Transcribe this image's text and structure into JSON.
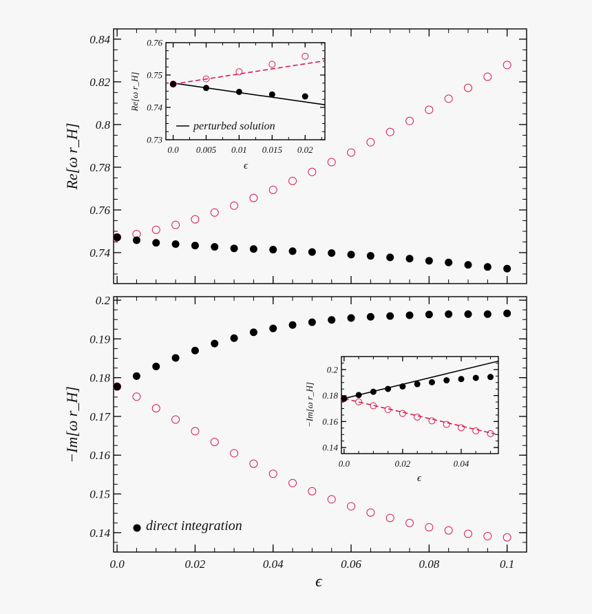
{
  "colors": {
    "background": "#f7f7f7",
    "direct": "#000000",
    "perturbed_accent": "#d81b4e"
  },
  "chart_data": [
    {
      "type": "scatter",
      "panel": "top",
      "ylabel": "Re[ω r_H]",
      "xlabel": "",
      "xlim": [
        -0.0009,
        0.105
      ],
      "ylim": [
        0.7255,
        0.8448
      ],
      "xticks": [
        {
          "value": 0
        },
        {
          "value": 0.02
        },
        {
          "value": 0.04
        },
        {
          "value": 0.06
        },
        {
          "value": 0.08
        },
        {
          "value": 0.1
        }
      ],
      "x_minor_step": 0.005,
      "yticks": [
        {
          "value": 0.74,
          "label": "0.74"
        },
        {
          "value": 0.76,
          "label": "0.76"
        },
        {
          "value": 0.78,
          "label": "0.78"
        },
        {
          "value": 0.8,
          "label": "0.8"
        },
        {
          "value": 0.82,
          "label": "0.82"
        },
        {
          "value": 0.84,
          "label": "0.84"
        }
      ],
      "y_minor_step": 0.005,
      "grid": false,
      "series": [
        {
          "marker": "filled",
          "color": "#000000",
          "x": [
            0,
            0.005,
            0.01,
            0.015,
            0.02,
            0.025,
            0.03,
            0.035,
            0.04,
            0.045,
            0.05,
            0.055,
            0.06,
            0.065,
            0.07,
            0.075,
            0.08,
            0.085,
            0.09,
            0.095,
            0.1
          ],
          "y": [
            0.7472,
            0.7458,
            0.7446,
            0.744,
            0.7433,
            0.7427,
            0.742,
            0.7417,
            0.7414,
            0.7407,
            0.7403,
            0.7398,
            0.7391,
            0.7385,
            0.7378,
            0.7372,
            0.7362,
            0.7354,
            0.7343,
            0.7333,
            0.7325
          ]
        },
        {
          "marker": "open",
          "color": "#d81b4e",
          "x": [
            0,
            0.005,
            0.01,
            0.015,
            0.02,
            0.025,
            0.03,
            0.035,
            0.04,
            0.045,
            0.05,
            0.055,
            0.06,
            0.065,
            0.07,
            0.075,
            0.08,
            0.085,
            0.09,
            0.095,
            0.1
          ],
          "y": [
            0.7472,
            0.7487,
            0.7507,
            0.753,
            0.7556,
            0.7588,
            0.762,
            0.7656,
            0.7694,
            0.7736,
            0.7778,
            0.7824,
            0.7869,
            0.7917,
            0.7965,
            0.8017,
            0.8069,
            0.8121,
            0.8172,
            0.8224,
            0.8279
          ]
        }
      ],
      "lines": []
    },
    {
      "type": "scatter",
      "panel": "bottom",
      "ylabel": "−Im[ω r_H]",
      "xlabel": "ϵ",
      "xlim": [
        -0.0009,
        0.105
      ],
      "ylim": [
        0.135,
        0.2009
      ],
      "xticks": [
        {
          "value": 0,
          "label": "0.0"
        },
        {
          "value": 0.02,
          "label": "0.02"
        },
        {
          "value": 0.04,
          "label": "0.04"
        },
        {
          "value": 0.06,
          "label": "0.06"
        },
        {
          "value": 0.08,
          "label": "0.08"
        },
        {
          "value": 0.1,
          "label": "0.1"
        }
      ],
      "x_minor_step": 0.005,
      "yticks": [
        {
          "value": 0.14,
          "label": "0.14"
        },
        {
          "value": 0.15,
          "label": "0.15"
        },
        {
          "value": 0.16,
          "label": "0.16"
        },
        {
          "value": 0.17,
          "label": "0.17"
        },
        {
          "value": 0.18,
          "label": "0.18"
        },
        {
          "value": 0.19,
          "label": "0.19"
        },
        {
          "value": 0.2,
          "label": "0.2"
        }
      ],
      "y_minor_step": 0.0025,
      "grid": false,
      "legend": {
        "label": "direct integration",
        "marker": "filled",
        "placement": "bottom-left"
      },
      "series": [
        {
          "marker": "filled",
          "color": "#000000",
          "x": [
            0,
            0.005,
            0.01,
            0.015,
            0.02,
            0.025,
            0.03,
            0.035,
            0.04,
            0.045,
            0.05,
            0.055,
            0.06,
            0.065,
            0.07,
            0.075,
            0.08,
            0.085,
            0.09,
            0.095,
            0.1
          ],
          "y": [
            0.1777,
            0.1804,
            0.1829,
            0.1851,
            0.187,
            0.1888,
            0.1902,
            0.1917,
            0.1927,
            0.1936,
            0.1943,
            0.1949,
            0.1954,
            0.1957,
            0.1959,
            0.1961,
            0.1963,
            0.1964,
            0.1964,
            0.1964,
            0.1966
          ]
        },
        {
          "marker": "open",
          "color": "#d81b4e",
          "x": [
            0,
            0.005,
            0.01,
            0.015,
            0.02,
            0.025,
            0.03,
            0.035,
            0.04,
            0.045,
            0.05,
            0.055,
            0.06,
            0.065,
            0.07,
            0.075,
            0.08,
            0.085,
            0.09,
            0.095,
            0.1
          ],
          "y": [
            0.1777,
            0.1751,
            0.1721,
            0.1692,
            0.1662,
            0.1634,
            0.1605,
            0.1578,
            0.1552,
            0.1528,
            0.1507,
            0.1486,
            0.1468,
            0.1452,
            0.1438,
            0.1425,
            0.1414,
            0.1406,
            0.1397,
            0.1391,
            0.1388
          ]
        }
      ],
      "lines": []
    },
    {
      "type": "scatter",
      "panel": "inset-top",
      "ylabel": "Re[ω r_H]",
      "xlabel": "ϵ",
      "xlim": [
        -0.0011,
        0.023
      ],
      "ylim": [
        0.73,
        0.76
      ],
      "xticks": [
        {
          "value": 0,
          "label": "0.0"
        },
        {
          "value": 0.005,
          "label": "0.005"
        },
        {
          "value": 0.01,
          "label": "0.01"
        },
        {
          "value": 0.015,
          "label": "0.015"
        },
        {
          "value": 0.02,
          "label": "0.02"
        }
      ],
      "x_minor_step": 0.0025,
      "yticks": [
        {
          "value": 0.73,
          "label": "0.73"
        },
        {
          "value": 0.74,
          "label": "0.74"
        },
        {
          "value": 0.75,
          "label": "0.75"
        },
        {
          "value": 0.76,
          "label": "0.76"
        }
      ],
      "y_minor_step": 0.0025,
      "grid": false,
      "legend": {
        "label": "perturbed solution",
        "marker": "line",
        "placement": "bottom-left"
      },
      "series": [
        {
          "marker": "filled",
          "color": "#000000",
          "x": [
            0,
            0.005,
            0.01,
            0.015,
            0.02
          ],
          "y": [
            0.7472,
            0.746,
            0.7448,
            0.744,
            0.7434
          ]
        },
        {
          "marker": "open",
          "color": "#d81b4e",
          "x": [
            0,
            0.005,
            0.01,
            0.015,
            0.02
          ],
          "y": [
            0.7472,
            0.7488,
            0.751,
            0.7533,
            0.7558
          ]
        }
      ],
      "lines": [
        {
          "style": "solid",
          "color": "#000000",
          "x": [
            0,
            0.023
          ],
          "y": [
            0.7475,
            0.7408
          ]
        },
        {
          "style": "dashed",
          "color": "#d81b4e",
          "x": [
            0,
            0.023
          ],
          "y": [
            0.7472,
            0.7544
          ]
        }
      ]
    },
    {
      "type": "scatter",
      "panel": "inset-bottom",
      "ylabel": "−Im[ω r_H]",
      "xlabel": "ϵ",
      "xlim": [
        -0.0009,
        0.0527
      ],
      "ylim": [
        0.1353,
        0.21
      ],
      "xticks": [
        {
          "value": 0,
          "label": "0.0"
        },
        {
          "value": 0.02,
          "label": "0.02"
        },
        {
          "value": 0.04,
          "label": "0.04"
        }
      ],
      "x_minor_step": 0.005,
      "yticks": [
        {
          "value": 0.14,
          "label": "0.14"
        },
        {
          "value": 0.16,
          "label": "0.16"
        },
        {
          "value": 0.18,
          "label": "0.18"
        },
        {
          "value": 0.2,
          "label": "0.2"
        }
      ],
      "y_minor_step": 0.005,
      "grid": false,
      "series": [
        {
          "marker": "filled",
          "color": "#000000",
          "x": [
            0,
            0.005,
            0.01,
            0.015,
            0.02,
            0.025,
            0.03,
            0.035,
            0.04,
            0.045,
            0.05
          ],
          "y": [
            0.1777,
            0.1804,
            0.1829,
            0.1851,
            0.187,
            0.1888,
            0.1902,
            0.1917,
            0.1927,
            0.1936,
            0.1943
          ]
        },
        {
          "marker": "open",
          "color": "#d81b4e",
          "x": [
            0,
            0.005,
            0.01,
            0.015,
            0.02,
            0.025,
            0.03,
            0.035,
            0.04,
            0.045,
            0.05
          ],
          "y": [
            0.1777,
            0.1751,
            0.1721,
            0.1692,
            0.1662,
            0.1634,
            0.1605,
            0.1578,
            0.1552,
            0.1528,
            0.1507
          ]
        }
      ],
      "lines": [
        {
          "style": "solid",
          "color": "#000000",
          "x": [
            0,
            0.0527
          ],
          "y": [
            0.1777,
            0.2065
          ]
        },
        {
          "style": "dashed",
          "color": "#d81b4e",
          "x": [
            0,
            0.0527
          ],
          "y": [
            0.1777,
            0.1498
          ]
        }
      ]
    }
  ]
}
